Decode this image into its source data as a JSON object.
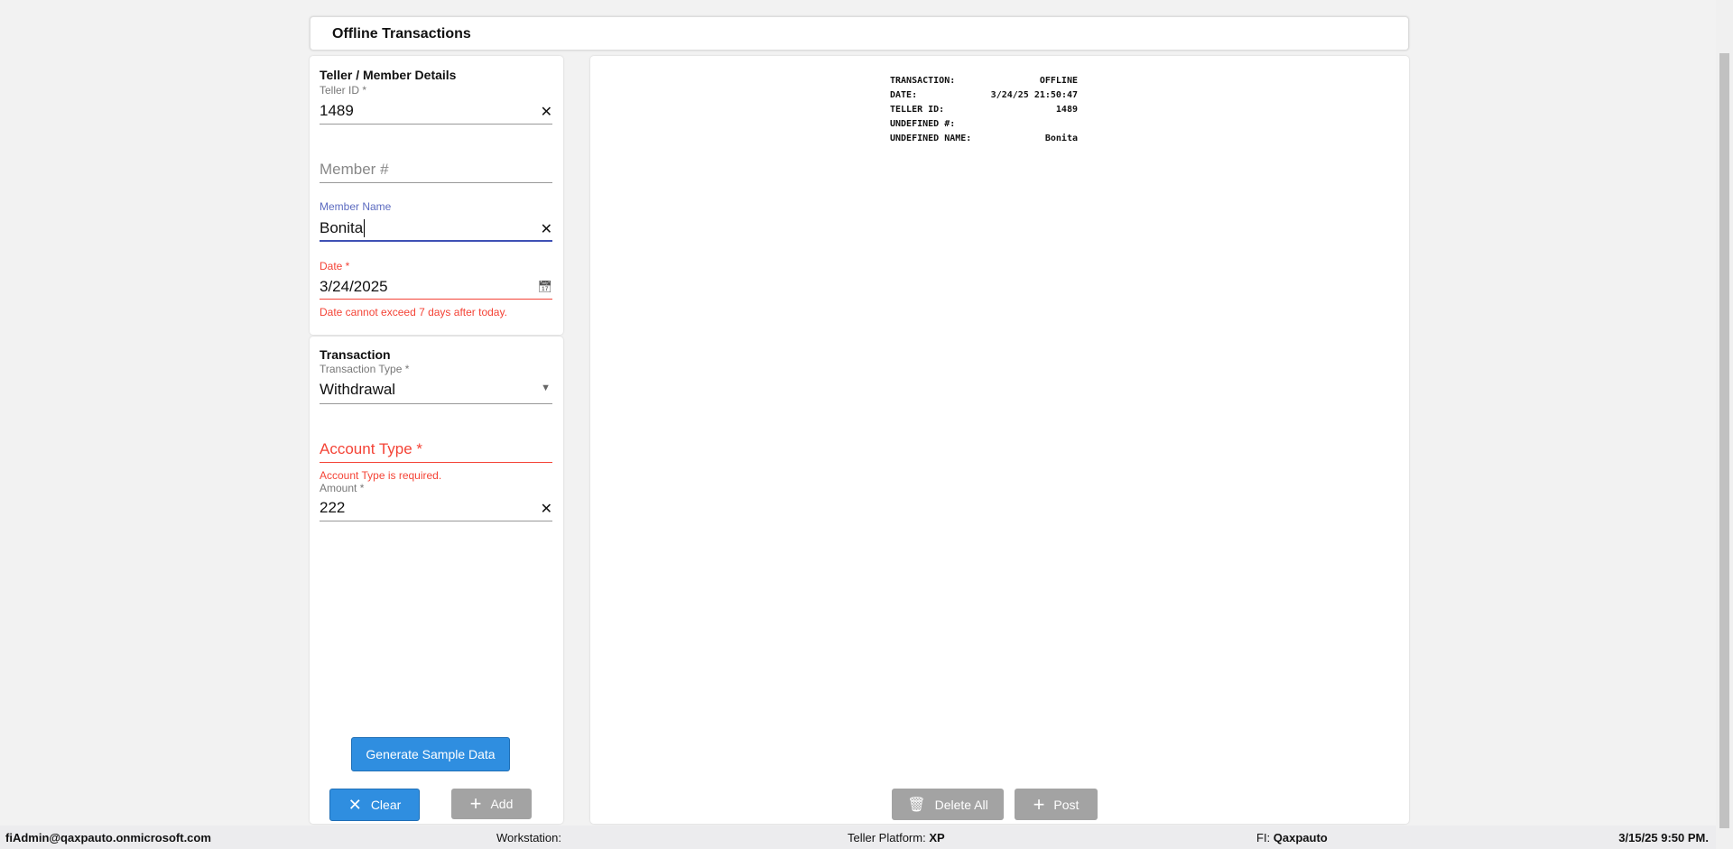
{
  "header": {
    "title": "Offline Transactions"
  },
  "teller_member": {
    "heading": "Teller / Member Details",
    "teller_id": {
      "label": "Teller ID *",
      "value": "1489"
    },
    "member_number": {
      "placeholder": "Member #"
    },
    "member_name": {
      "label": "Member Name",
      "value": "Bonita"
    },
    "date": {
      "label": "Date *",
      "value": "3/24/2025",
      "error": "Date cannot exceed 7 days after today."
    }
  },
  "transaction": {
    "heading": "Transaction",
    "type": {
      "label": "Transaction Type *",
      "value": "Withdrawal"
    },
    "account_type": {
      "placeholder": "Account Type *",
      "error": "Account Type is required."
    },
    "amount": {
      "label": "Amount *",
      "value": "222"
    }
  },
  "buttons": {
    "generate": "Generate Sample Data",
    "clear": "Clear",
    "add": "Add",
    "delete_all": "Delete All",
    "post": "Post"
  },
  "receipt": [
    [
      "TRANSACTION:",
      "OFFLINE"
    ],
    [
      "DATE:",
      "3/24/25 21:50:47"
    ],
    [
      "TELLER ID:",
      "1489"
    ],
    [
      "UNDEFINED #:",
      ""
    ],
    [
      "UNDEFINED NAME:",
      "Bonita"
    ]
  ],
  "status": {
    "user": "fiAdmin@qaxpauto.onmicrosoft.com",
    "workstation_label": "Workstation:",
    "platform_label": "Teller Platform:",
    "platform": "XP",
    "fi_label": "FI:",
    "fi": "Qaxpauto",
    "datetime": "3/15/25 9:50 PM."
  },
  "colors": {
    "primary": "#2f8ee0",
    "focus": "#3f51b5",
    "error": "#f44336",
    "disabled": "#a3a3a3"
  }
}
